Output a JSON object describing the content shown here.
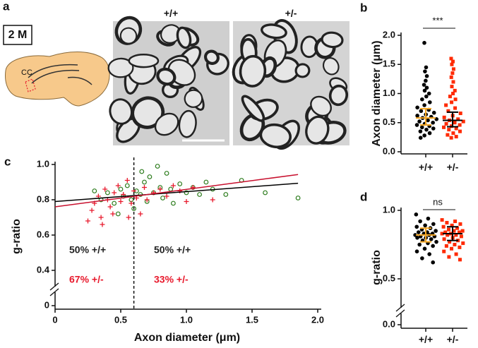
{
  "panel_a": {
    "label": "a",
    "age": "2 M",
    "region": "CC",
    "images": [
      "+/+",
      "+/-"
    ]
  },
  "chart_data": [
    {
      "type": "strip",
      "panel": "b",
      "ylabel": "Axon diameter (μm)",
      "categories": [
        "+/+",
        "+/-"
      ],
      "series": [
        {
          "color": "#000000",
          "marker": "circle",
          "values": [
            1.87,
            1.45,
            1.38,
            1.3,
            1.22,
            1.15,
            1.1,
            1.05,
            1.0,
            0.95,
            0.9,
            0.85,
            0.8,
            0.76,
            0.72,
            0.7,
            0.67,
            0.64,
            0.62,
            0.6,
            0.58,
            0.56,
            0.54,
            0.52,
            0.5,
            0.48,
            0.46,
            0.44,
            0.42,
            0.4,
            0.38,
            0.35,
            0.32,
            0.28,
            0.24
          ]
        },
        {
          "color": "#ff2a00",
          "marker": "square",
          "values": [
            1.6,
            1.55,
            1.5,
            1.42,
            1.35,
            1.28,
            1.2,
            1.12,
            1.05,
            1.0,
            0.95,
            0.9,
            0.85,
            0.8,
            0.75,
            0.7,
            0.66,
            0.62,
            0.59,
            0.56,
            0.54,
            0.52,
            0.5,
            0.48,
            0.46,
            0.44,
            0.42,
            0.4,
            0.38,
            0.35,
            0.32,
            0.29,
            0.26,
            0.24
          ]
        }
      ],
      "summary": [
        {
          "color": "#f5a623",
          "median": 0.58,
          "q1": 0.46,
          "q3": 0.74
        },
        {
          "color": "#000000",
          "median": 0.54,
          "q1": 0.43,
          "q3": 0.68
        }
      ],
      "ylim": [
        0,
        2
      ],
      "yticks": [
        {
          "value": 0,
          "label": "0.0"
        },
        0.5,
        {
          "value": 1,
          "label": "1.0"
        },
        1.5,
        {
          "value": 2,
          "label": "2.0"
        }
      ],
      "annotation": "***"
    },
    {
      "type": "scatter",
      "panel": "c",
      "xlabel": "Axon diameter (μm)",
      "ylabel": "g-ratio",
      "series": [
        {
          "color": "#2e7d1e",
          "marker": "open-circle",
          "x": [
            0.35,
            0.4,
            0.45,
            0.5,
            0.52,
            0.55,
            0.58,
            0.6,
            0.62,
            0.65,
            0.68,
            0.7,
            0.72,
            0.75,
            0.78,
            0.8,
            0.82,
            0.85,
            0.88,
            0.9,
            0.95,
            1.0,
            1.05,
            1.1,
            1.15,
            1.2,
            1.3,
            1.42,
            1.6,
            1.85,
            0.3,
            0.48,
            0.66
          ],
          "y": [
            0.8,
            0.84,
            0.78,
            0.86,
            0.82,
            0.88,
            0.8,
            0.75,
            0.85,
            0.83,
            0.9,
            0.79,
            0.93,
            0.84,
            0.99,
            0.87,
            0.81,
            0.95,
            0.86,
            0.78,
            0.89,
            0.84,
            0.87,
            0.83,
            0.9,
            0.86,
            0.83,
            0.91,
            0.84,
            0.81,
            0.85,
            0.72,
            0.96
          ]
        },
        {
          "color": "#e8192c",
          "marker": "cross",
          "x": [
            0.25,
            0.28,
            0.3,
            0.33,
            0.35,
            0.38,
            0.4,
            0.42,
            0.45,
            0.48,
            0.5,
            0.52,
            0.55,
            0.58,
            0.6,
            0.62,
            0.65,
            0.68,
            0.7,
            0.75,
            0.8,
            0.85,
            0.9,
            0.95,
            1.0,
            1.05,
            1.2,
            0.36,
            0.44,
            0.56
          ],
          "y": [
            0.68,
            0.74,
            0.78,
            0.82,
            0.7,
            0.86,
            0.8,
            0.76,
            0.84,
            0.88,
            0.79,
            0.83,
            0.91,
            0.78,
            0.85,
            0.81,
            0.72,
            0.87,
            0.8,
            0.84,
            0.86,
            0.82,
            0.88,
            0.85,
            0.79,
            0.87,
            0.8,
            0.66,
            0.72,
            0.7
          ]
        }
      ],
      "fits": [
        {
          "color": "#000000",
          "intercept": 0.79,
          "slope": 0.056
        },
        {
          "color": "#c8102e",
          "intercept": 0.76,
          "slope": 0.099
        }
      ],
      "threshold_x": 0.6,
      "annotations": [
        {
          "text": "50% +/+",
          "color": "#222222"
        },
        {
          "text": "50% +/+",
          "color": "#222222"
        },
        {
          "text": "67% +/-",
          "color": "#e8192c"
        },
        {
          "text": "33% +/-",
          "color": "#e8192c"
        }
      ],
      "xlim": [
        0,
        2
      ],
      "ylim": [
        0,
        1
      ],
      "xticks": [
        0,
        0.5,
        {
          "value": 1,
          "label": "1.0"
        },
        1.5,
        {
          "value": 2,
          "label": "2.0"
        }
      ],
      "yticks": [
        0,
        0.4,
        0.6,
        0.8,
        {
          "value": 1,
          "label": "1.0"
        }
      ],
      "axis_break": true
    },
    {
      "type": "strip",
      "panel": "d",
      "ylabel": "g-ratio",
      "categories": [
        "+/+",
        "+/-"
      ],
      "series": [
        {
          "color": "#000000",
          "marker": "circle",
          "values": [
            0.97,
            0.94,
            0.92,
            0.9,
            0.89,
            0.88,
            0.87,
            0.86,
            0.85,
            0.84,
            0.84,
            0.83,
            0.83,
            0.82,
            0.82,
            0.81,
            0.81,
            0.8,
            0.8,
            0.79,
            0.78,
            0.77,
            0.76,
            0.75,
            0.74,
            0.72,
            0.7,
            0.68,
            0.65,
            0.62
          ]
        },
        {
          "color": "#ff2a00",
          "marker": "square",
          "values": [
            0.93,
            0.92,
            0.91,
            0.9,
            0.89,
            0.88,
            0.87,
            0.86,
            0.85,
            0.85,
            0.84,
            0.84,
            0.83,
            0.83,
            0.82,
            0.82,
            0.81,
            0.8,
            0.79,
            0.78,
            0.77,
            0.76,
            0.75,
            0.74,
            0.73,
            0.72,
            0.7,
            0.68,
            0.66,
            0.64
          ]
        }
      ],
      "summary": [
        {
          "color": "#f5a623",
          "mean": 0.82,
          "sd": 0.05
        },
        {
          "color": "#000000",
          "mean": 0.83,
          "sd": 0.05
        }
      ],
      "ylim": [
        0,
        1
      ],
      "yticks": [
        {
          "value": 0,
          "label": "0.0"
        },
        0.5,
        {
          "value": 1,
          "label": "1.0"
        }
      ],
      "annotation": "ns",
      "axis_break": true
    }
  ]
}
